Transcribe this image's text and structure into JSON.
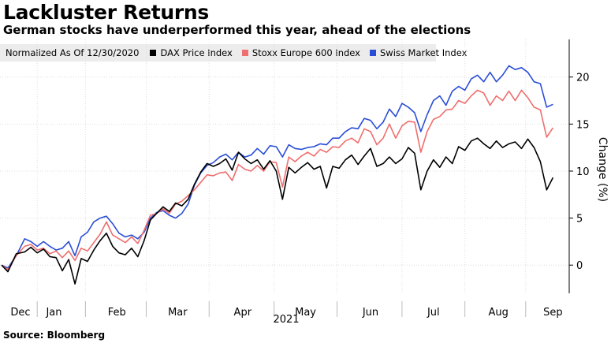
{
  "title": "Lackluster Returns",
  "subtitle": "German stocks have underperformed this year, ahead of the elections",
  "legend_note": "Normalized As Of 12/30/2020",
  "source": "Source: Bloomberg",
  "chart_data": {
    "type": "line",
    "ylabel": "Change (%)",
    "xlabel": "",
    "year_label": "2021",
    "ylim": [
      -3,
      24
    ],
    "yticks": [
      0,
      5,
      10,
      15,
      20
    ],
    "xlim": [
      "2020-12-21",
      "2021-09-14"
    ],
    "x_months": [
      {
        "label": "Dec",
        "date": "2020-12-30"
      },
      {
        "label": "Jan",
        "date": "2021-01-15"
      },
      {
        "label": "Feb",
        "date": "2021-02-14"
      },
      {
        "label": "Mar",
        "date": "2021-03-15"
      },
      {
        "label": "Apr",
        "date": "2021-04-15"
      },
      {
        "label": "May",
        "date": "2021-05-15"
      },
      {
        "label": "Jun",
        "date": "2021-06-15"
      },
      {
        "label": "Jul",
        "date": "2021-07-15"
      },
      {
        "label": "Aug",
        "date": "2021-08-15"
      },
      {
        "label": "Sep",
        "date": "2021-09-10"
      }
    ],
    "grid": true,
    "legend_position": "top-left",
    "series": [
      {
        "name": "DAX Price Index",
        "color": "#000000",
        "points": [
          [
            "2020-12-21",
            0
          ],
          [
            "2020-12-24",
            -0.7
          ],
          [
            "2020-12-28",
            1.2
          ],
          [
            "2021-01-01",
            1.4
          ],
          [
            "2021-01-04",
            1.9
          ],
          [
            "2021-01-07",
            1.3
          ],
          [
            "2021-01-10",
            1.7
          ],
          [
            "2021-01-13",
            0.9
          ],
          [
            "2021-01-16",
            0.8
          ],
          [
            "2021-01-19",
            -0.6
          ],
          [
            "2021-01-22",
            0.6
          ],
          [
            "2021-01-25",
            -2.0
          ],
          [
            "2021-01-28",
            0.7
          ],
          [
            "2021-01-31",
            0.4
          ],
          [
            "2021-02-03",
            1.6
          ],
          [
            "2021-02-06",
            2.6
          ],
          [
            "2021-02-09",
            3.4
          ],
          [
            "2021-02-12",
            2.0
          ],
          [
            "2021-02-15",
            1.3
          ],
          [
            "2021-02-18",
            1.1
          ],
          [
            "2021-02-21",
            1.8
          ],
          [
            "2021-02-24",
            0.9
          ],
          [
            "2021-02-27",
            2.6
          ],
          [
            "2021-03-02",
            4.8
          ],
          [
            "2021-03-05",
            5.5
          ],
          [
            "2021-03-08",
            6.2
          ],
          [
            "2021-03-11",
            5.7
          ],
          [
            "2021-03-14",
            6.6
          ],
          [
            "2021-03-17",
            6.3
          ],
          [
            "2021-03-20",
            7.0
          ],
          [
            "2021-03-23",
            8.6
          ],
          [
            "2021-03-26",
            9.9
          ],
          [
            "2021-03-29",
            10.8
          ],
          [
            "2021-04-01",
            10.5
          ],
          [
            "2021-04-04",
            10.8
          ],
          [
            "2021-04-07",
            11.3
          ],
          [
            "2021-04-10",
            10.1
          ],
          [
            "2021-04-13",
            12.0
          ],
          [
            "2021-04-16",
            11.3
          ],
          [
            "2021-04-19",
            10.8
          ],
          [
            "2021-04-22",
            11.2
          ],
          [
            "2021-04-25",
            10.2
          ],
          [
            "2021-04-28",
            11.1
          ],
          [
            "2021-05-01",
            10.0
          ],
          [
            "2021-05-04",
            7.0
          ],
          [
            "2021-05-07",
            10.4
          ],
          [
            "2021-05-10",
            9.8
          ],
          [
            "2021-05-13",
            10.4
          ],
          [
            "2021-05-16",
            10.9
          ],
          [
            "2021-05-19",
            10.2
          ],
          [
            "2021-05-22",
            10.5
          ],
          [
            "2021-05-25",
            8.2
          ],
          [
            "2021-05-28",
            10.5
          ],
          [
            "2021-05-31",
            10.3
          ],
          [
            "2021-06-03",
            11.2
          ],
          [
            "2021-06-06",
            11.7
          ],
          [
            "2021-06-09",
            10.7
          ],
          [
            "2021-06-12",
            11.6
          ],
          [
            "2021-06-15",
            12.4
          ],
          [
            "2021-06-18",
            10.5
          ],
          [
            "2021-06-21",
            10.8
          ],
          [
            "2021-06-24",
            11.5
          ],
          [
            "2021-06-27",
            10.8
          ],
          [
            "2021-06-30",
            11.3
          ],
          [
            "2021-07-03",
            12.5
          ],
          [
            "2021-07-06",
            11.9
          ],
          [
            "2021-07-09",
            8.0
          ],
          [
            "2021-07-12",
            10.0
          ],
          [
            "2021-07-15",
            11.2
          ],
          [
            "2021-07-18",
            10.4
          ],
          [
            "2021-07-21",
            11.5
          ],
          [
            "2021-07-24",
            10.8
          ],
          [
            "2021-07-27",
            12.6
          ],
          [
            "2021-07-30",
            12.2
          ],
          [
            "2021-08-02",
            13.2
          ],
          [
            "2021-08-05",
            13.5
          ],
          [
            "2021-08-08",
            12.9
          ],
          [
            "2021-08-11",
            12.4
          ],
          [
            "2021-08-14",
            13.2
          ],
          [
            "2021-08-17",
            12.5
          ],
          [
            "2021-08-20",
            12.9
          ],
          [
            "2021-08-23",
            13.1
          ],
          [
            "2021-08-26",
            12.4
          ],
          [
            "2021-08-29",
            13.4
          ],
          [
            "2021-09-01",
            12.5
          ],
          [
            "2021-09-04",
            11.0
          ],
          [
            "2021-09-07",
            8.0
          ],
          [
            "2021-09-10",
            9.3
          ]
        ]
      },
      {
        "name": "Stoxx Europe 600 Index",
        "color": "#ef6e6e",
        "points": [
          [
            "2020-12-21",
            0
          ],
          [
            "2020-12-24",
            -0.5
          ],
          [
            "2020-12-28",
            1.0
          ],
          [
            "2021-01-01",
            2.0
          ],
          [
            "2021-01-04",
            2.2
          ],
          [
            "2021-01-07",
            1.6
          ],
          [
            "2021-01-10",
            1.8
          ],
          [
            "2021-01-13",
            1.2
          ],
          [
            "2021-01-16",
            1.5
          ],
          [
            "2021-01-19",
            0.8
          ],
          [
            "2021-01-22",
            1.5
          ],
          [
            "2021-01-25",
            0.5
          ],
          [
            "2021-01-28",
            1.8
          ],
          [
            "2021-01-31",
            1.5
          ],
          [
            "2021-02-03",
            2.4
          ],
          [
            "2021-02-06",
            3.3
          ],
          [
            "2021-02-09",
            4.6
          ],
          [
            "2021-02-12",
            3.2
          ],
          [
            "2021-02-15",
            2.8
          ],
          [
            "2021-02-18",
            2.4
          ],
          [
            "2021-02-21",
            3.0
          ],
          [
            "2021-02-24",
            2.3
          ],
          [
            "2021-02-27",
            3.7
          ],
          [
            "2021-03-02",
            5.3
          ],
          [
            "2021-03-05",
            5.5
          ],
          [
            "2021-03-08",
            6.0
          ],
          [
            "2021-03-11",
            5.5
          ],
          [
            "2021-03-14",
            6.5
          ],
          [
            "2021-03-17",
            6.8
          ],
          [
            "2021-03-20",
            7.4
          ],
          [
            "2021-03-23",
            8.0
          ],
          [
            "2021-03-26",
            8.8
          ],
          [
            "2021-03-29",
            9.6
          ],
          [
            "2021-04-01",
            9.5
          ],
          [
            "2021-04-04",
            9.8
          ],
          [
            "2021-04-07",
            9.9
          ],
          [
            "2021-04-10",
            9.0
          ],
          [
            "2021-04-13",
            10.7
          ],
          [
            "2021-04-16",
            10.2
          ],
          [
            "2021-04-19",
            10.0
          ],
          [
            "2021-04-22",
            10.6
          ],
          [
            "2021-04-25",
            10.0
          ],
          [
            "2021-04-28",
            11.0
          ],
          [
            "2021-05-01",
            10.9
          ],
          [
            "2021-05-04",
            8.3
          ],
          [
            "2021-05-07",
            11.5
          ],
          [
            "2021-05-10",
            11.0
          ],
          [
            "2021-05-13",
            11.6
          ],
          [
            "2021-05-16",
            12.0
          ],
          [
            "2021-05-19",
            11.6
          ],
          [
            "2021-05-22",
            12.3
          ],
          [
            "2021-05-25",
            12.0
          ],
          [
            "2021-05-28",
            12.6
          ],
          [
            "2021-05-31",
            12.5
          ],
          [
            "2021-06-03",
            13.2
          ],
          [
            "2021-06-06",
            13.5
          ],
          [
            "2021-06-09",
            13.0
          ],
          [
            "2021-06-12",
            14.5
          ],
          [
            "2021-06-15",
            14.2
          ],
          [
            "2021-06-18",
            12.8
          ],
          [
            "2021-06-21",
            13.5
          ],
          [
            "2021-06-24",
            15.0
          ],
          [
            "2021-06-27",
            13.5
          ],
          [
            "2021-06-30",
            14.8
          ],
          [
            "2021-07-03",
            15.3
          ],
          [
            "2021-07-06",
            15.2
          ],
          [
            "2021-07-09",
            12.0
          ],
          [
            "2021-07-12",
            14.2
          ],
          [
            "2021-07-15",
            15.5
          ],
          [
            "2021-07-18",
            15.8
          ],
          [
            "2021-07-21",
            16.5
          ],
          [
            "2021-07-24",
            16.6
          ],
          [
            "2021-07-27",
            17.5
          ],
          [
            "2021-07-30",
            17.2
          ],
          [
            "2021-08-02",
            18.0
          ],
          [
            "2021-08-05",
            18.6
          ],
          [
            "2021-08-08",
            18.3
          ],
          [
            "2021-08-11",
            17.0
          ],
          [
            "2021-08-14",
            18.0
          ],
          [
            "2021-08-17",
            17.5
          ],
          [
            "2021-08-20",
            18.5
          ],
          [
            "2021-08-23",
            17.5
          ],
          [
            "2021-08-26",
            18.6
          ],
          [
            "2021-08-29",
            17.8
          ],
          [
            "2021-09-01",
            16.8
          ],
          [
            "2021-09-04",
            16.5
          ],
          [
            "2021-09-07",
            13.6
          ],
          [
            "2021-09-10",
            14.6
          ]
        ]
      },
      {
        "name": "Swiss Market Index",
        "color": "#2a4ed6",
        "points": [
          [
            "2020-12-21",
            0
          ],
          [
            "2020-12-24",
            -0.3
          ],
          [
            "2020-12-28",
            1.0
          ],
          [
            "2021-01-01",
            2.8
          ],
          [
            "2021-01-04",
            2.5
          ],
          [
            "2021-01-07",
            2.0
          ],
          [
            "2021-01-10",
            2.5
          ],
          [
            "2021-01-13",
            2.0
          ],
          [
            "2021-01-16",
            1.6
          ],
          [
            "2021-01-19",
            1.8
          ],
          [
            "2021-01-22",
            2.5
          ],
          [
            "2021-01-25",
            1.0
          ],
          [
            "2021-01-28",
            3.0
          ],
          [
            "2021-01-31",
            3.5
          ],
          [
            "2021-02-03",
            4.6
          ],
          [
            "2021-02-06",
            5.0
          ],
          [
            "2021-02-09",
            5.2
          ],
          [
            "2021-02-12",
            4.4
          ],
          [
            "2021-02-15",
            3.4
          ],
          [
            "2021-02-18",
            3.0
          ],
          [
            "2021-02-21",
            3.2
          ],
          [
            "2021-02-24",
            2.8
          ],
          [
            "2021-02-27",
            3.5
          ],
          [
            "2021-03-02",
            5.0
          ],
          [
            "2021-03-05",
            5.6
          ],
          [
            "2021-03-08",
            5.8
          ],
          [
            "2021-03-11",
            5.3
          ],
          [
            "2021-03-14",
            5.0
          ],
          [
            "2021-03-17",
            5.5
          ],
          [
            "2021-03-20",
            6.5
          ],
          [
            "2021-03-23",
            8.5
          ],
          [
            "2021-03-26",
            9.8
          ],
          [
            "2021-03-29",
            10.6
          ],
          [
            "2021-04-01",
            10.9
          ],
          [
            "2021-04-04",
            11.5
          ],
          [
            "2021-04-07",
            11.8
          ],
          [
            "2021-04-10",
            11.2
          ],
          [
            "2021-04-13",
            12.0
          ],
          [
            "2021-04-16",
            11.5
          ],
          [
            "2021-04-19",
            11.7
          ],
          [
            "2021-04-22",
            12.4
          ],
          [
            "2021-04-25",
            11.8
          ],
          [
            "2021-04-28",
            12.7
          ],
          [
            "2021-05-01",
            12.6
          ],
          [
            "2021-05-04",
            11.5
          ],
          [
            "2021-05-07",
            12.8
          ],
          [
            "2021-05-10",
            12.4
          ],
          [
            "2021-05-13",
            12.3
          ],
          [
            "2021-05-16",
            12.5
          ],
          [
            "2021-05-19",
            12.6
          ],
          [
            "2021-05-22",
            12.9
          ],
          [
            "2021-05-25",
            12.8
          ],
          [
            "2021-05-28",
            13.5
          ],
          [
            "2021-05-31",
            13.5
          ],
          [
            "2021-06-03",
            14.2
          ],
          [
            "2021-06-06",
            14.6
          ],
          [
            "2021-06-09",
            14.5
          ],
          [
            "2021-06-12",
            15.6
          ],
          [
            "2021-06-15",
            15.4
          ],
          [
            "2021-06-18",
            14.5
          ],
          [
            "2021-06-21",
            15.2
          ],
          [
            "2021-06-24",
            16.6
          ],
          [
            "2021-06-27",
            15.8
          ],
          [
            "2021-06-30",
            17.2
          ],
          [
            "2021-07-03",
            16.8
          ],
          [
            "2021-07-06",
            16.2
          ],
          [
            "2021-07-09",
            14.2
          ],
          [
            "2021-07-12",
            16.0
          ],
          [
            "2021-07-15",
            17.5
          ],
          [
            "2021-07-18",
            18.0
          ],
          [
            "2021-07-21",
            17.0
          ],
          [
            "2021-07-24",
            18.5
          ],
          [
            "2021-07-27",
            19.0
          ],
          [
            "2021-07-30",
            18.6
          ],
          [
            "2021-08-02",
            19.8
          ],
          [
            "2021-08-05",
            20.2
          ],
          [
            "2021-08-08",
            19.5
          ],
          [
            "2021-08-11",
            20.5
          ],
          [
            "2021-08-14",
            19.5
          ],
          [
            "2021-08-17",
            20.2
          ],
          [
            "2021-08-20",
            21.2
          ],
          [
            "2021-08-23",
            20.8
          ],
          [
            "2021-08-26",
            21.0
          ],
          [
            "2021-08-29",
            20.5
          ],
          [
            "2021-09-01",
            19.5
          ],
          [
            "2021-09-04",
            19.3
          ],
          [
            "2021-09-07",
            16.8
          ],
          [
            "2021-09-10",
            17.1
          ]
        ]
      }
    ]
  }
}
